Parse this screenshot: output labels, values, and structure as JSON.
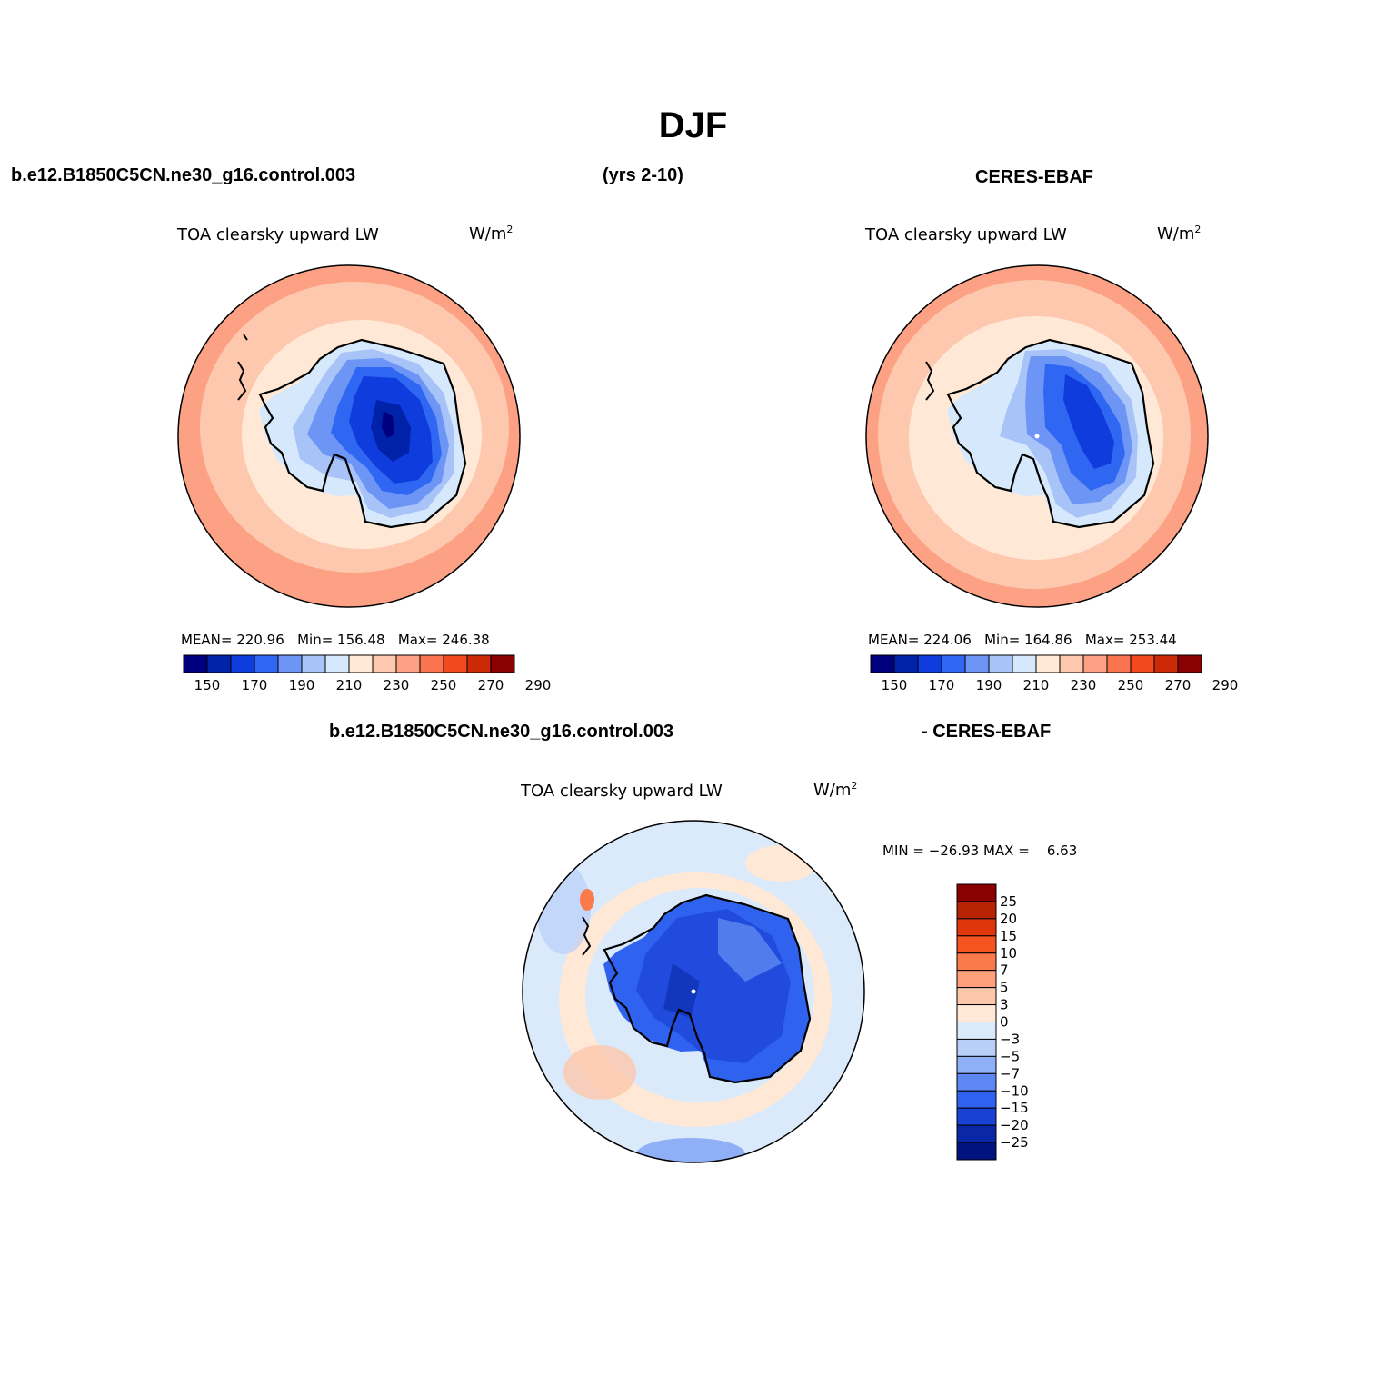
{
  "figure": {
    "season": "DJF",
    "case_name": "b.e12.B1850C5CN.ne30_g16.control.003",
    "years": "(yrs 2-10)",
    "obs_name": "CERES-EBAF",
    "diff_case": "b.e12.B1850C5CN.ne30_g16.control.003",
    "diff_obs": "- CERES-EBAF"
  },
  "panels": {
    "model": {
      "variable": "TOA clearsky upward LW",
      "units": "W/m",
      "units_exp": "2",
      "mean_label": "MEAN=",
      "mean": "220.96",
      "min_label": "Min=",
      "min": "156.48",
      "max_label": "Max=",
      "max": "246.38"
    },
    "obs": {
      "variable": "TOA clearsky upward LW",
      "units": "W/m",
      "units_exp": "2",
      "mean_label": "MEAN=",
      "mean": "224.06",
      "min_label": "Min=",
      "min": "164.86",
      "max_label": "Max=",
      "max": "253.44"
    },
    "diff": {
      "variable": "TOA clearsky upward LW",
      "units": "W/m",
      "units_exp": "2",
      "minmax_text": "MIN = −26.93 MAX =    6.63"
    }
  },
  "colorbar_abs": {
    "labels": [
      "150",
      "170",
      "190",
      "210",
      "230",
      "250",
      "270",
      "290"
    ],
    "colors": [
      "#00007f",
      "#0022a8",
      "#0f3cdc",
      "#2f66f2",
      "#6d95f5",
      "#a8c3f8",
      "#d6e8fb",
      "#ffe9d6",
      "#fdc8ad",
      "#fca184",
      "#fa7450",
      "#f24a1d",
      "#cc2a06",
      "#8b0000"
    ]
  },
  "colorbar_diff": {
    "labels": [
      "25",
      "20",
      "15",
      "10",
      "7",
      "5",
      "3",
      "0",
      "−3",
      "−5",
      "−7",
      "−10",
      "−15",
      "−20",
      "−25"
    ],
    "colors": [
      "#8b0000",
      "#b82205",
      "#e0360c",
      "#f4541f",
      "#fa7a4a",
      "#fc9f7a",
      "#fdc7ab",
      "#ffe8d5",
      "#dbeafb",
      "#b8cff8",
      "#8fb0f6",
      "#5d88f3",
      "#2f62ee",
      "#1942d4",
      "#0a28a6",
      "#00137f"
    ]
  }
}
